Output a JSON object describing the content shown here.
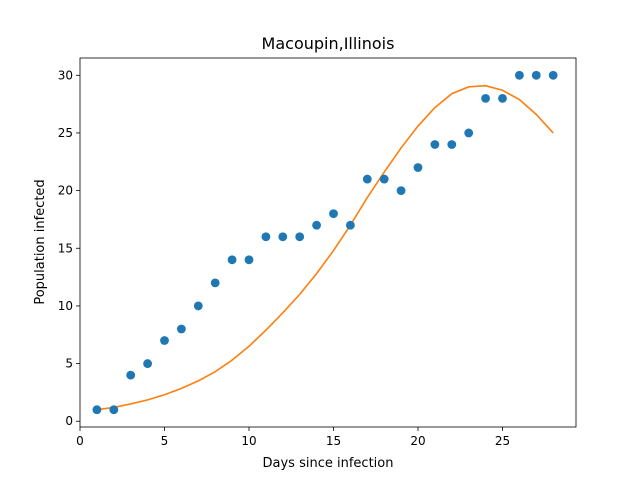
{
  "chart_data": {
    "type": "scatter",
    "title": "Macoupin,Illinois",
    "xlabel": "Days since infection",
    "ylabel": "Population infected",
    "xlim": [
      0,
      29.35
    ],
    "ylim": [
      -0.5,
      31.5
    ],
    "xticks": [
      0,
      5,
      10,
      15,
      20,
      25
    ],
    "yticks": [
      0,
      5,
      10,
      15,
      20,
      25,
      30
    ],
    "grid": false,
    "series": [
      {
        "kind": "scatter",
        "color": "#1f77b4",
        "x": [
          1,
          2,
          3,
          4,
          5,
          6,
          7,
          8,
          9,
          10,
          11,
          12,
          13,
          14,
          15,
          16,
          17,
          18,
          19,
          20,
          21,
          22,
          23,
          24,
          25,
          26,
          27,
          28
        ],
        "y": [
          1,
          1,
          4,
          5,
          7,
          8,
          10,
          12,
          14,
          14,
          16,
          16,
          16,
          17,
          18,
          17,
          21,
          21,
          20,
          22,
          24,
          24,
          25,
          28,
          28,
          30,
          30,
          30
        ]
      },
      {
        "kind": "line",
        "color": "#ff7f0e",
        "x": [
          1,
          2,
          3,
          4,
          5,
          6,
          7,
          8,
          9,
          10,
          11,
          12,
          13,
          14,
          15,
          16,
          17,
          18,
          19,
          20,
          21,
          22,
          23,
          24,
          25,
          26,
          27,
          28
        ],
        "y": [
          1.0,
          1.2,
          1.5,
          1.85,
          2.3,
          2.85,
          3.5,
          4.3,
          5.3,
          6.5,
          7.9,
          9.4,
          11.0,
          12.8,
          14.8,
          17.0,
          19.4,
          21.6,
          23.7,
          25.6,
          27.2,
          28.4,
          29.0,
          29.1,
          28.7,
          27.9,
          26.6,
          25.0
        ]
      }
    ]
  }
}
